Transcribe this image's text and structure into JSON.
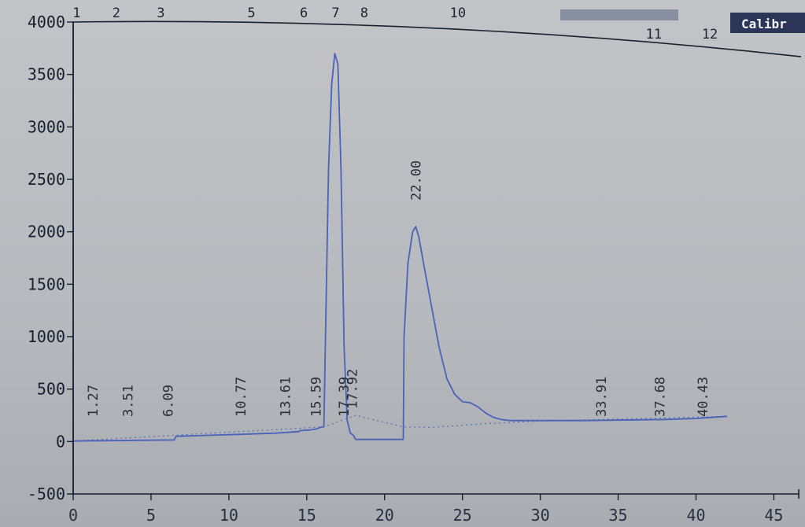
{
  "header": {
    "top_right_label": "Calibr"
  },
  "colors": {
    "signal": "#4a63b8",
    "baseline": "#4a63b8",
    "axis": "#1a1f2e"
  },
  "chart_data": {
    "type": "line",
    "xlim": [
      0,
      47
    ],
    "ylim": [
      -500,
      4000
    ],
    "x_ticks": [
      0,
      5,
      10,
      15,
      20,
      25,
      30,
      35,
      40,
      45
    ],
    "y_ticks": [
      -500,
      0,
      500,
      1000,
      1500,
      2000,
      2500,
      3000,
      3500,
      4000
    ],
    "peak_numbers": [
      {
        "label": "1",
        "x": 2.3
      },
      {
        "label": "2",
        "x": 4.8
      },
      {
        "label": "3",
        "x": 7.6
      },
      {
        "label": "5",
        "x": 13.3
      },
      {
        "label": "6",
        "x": 16.6
      },
      {
        "label": "7",
        "x": 18.6
      },
      {
        "label": "8",
        "x": 20.4
      },
      {
        "label": "10",
        "x": 26.3
      },
      {
        "label": "11",
        "x": 38.4
      },
      {
        "label": "12",
        "x": 42.0
      }
    ],
    "retention_labels": [
      {
        "label": "1.27",
        "x": 1.27
      },
      {
        "label": "3.51",
        "x": 3.51
      },
      {
        "label": "6.09",
        "x": 6.09
      },
      {
        "label": "10.77",
        "x": 10.77
      },
      {
        "label": "13.61",
        "x": 13.61
      },
      {
        "label": "15.59",
        "x": 15.59
      },
      {
        "label": "17.39",
        "x": 17.39
      },
      {
        "label": "17.92",
        "x": 17.92
      },
      {
        "label": "22.00",
        "x": 22.0
      },
      {
        "label": "33.91",
        "x": 33.91
      },
      {
        "label": "37.68",
        "x": 37.68
      },
      {
        "label": "40.43",
        "x": 40.43
      }
    ],
    "series": [
      {
        "x": [
          0,
          6.5,
          6.6,
          10,
          13,
          14.5,
          14.6,
          15.2,
          15.6,
          16.0,
          16.1,
          16.4,
          16.6,
          16.8,
          17.0,
          17.2,
          17.4,
          17.6,
          17.8,
          18.0,
          18.1,
          18.15,
          21.2,
          21.25,
          21.5,
          21.8,
          22.0,
          22.2,
          22.5,
          23.0,
          23.5,
          24.0,
          24.5,
          25.0,
          25.5,
          26.0,
          26.5,
          27.0,
          27.5,
          28.0,
          29.0,
          30.0,
          33.0,
          38.0,
          40.0,
          42.0
        ],
        "y": [
          5,
          15,
          50,
          65,
          80,
          95,
          105,
          110,
          120,
          140,
          140,
          2600,
          3400,
          3700,
          3600,
          2600,
          900,
          200,
          80,
          60,
          30,
          20,
          20,
          1000,
          1700,
          2000,
          2050,
          1950,
          1700,
          1300,
          900,
          600,
          450,
          380,
          370,
          330,
          270,
          230,
          210,
          200,
          200,
          200,
          200,
          210,
          220,
          240
        ]
      }
    ],
    "baseline": {
      "x": [
        0,
        16.1,
        18.15,
        21.2,
        23.0,
        27.0,
        30.0,
        42.0
      ],
      "y": [
        5,
        140,
        250,
        140,
        135,
        175,
        195,
        240
      ]
    }
  }
}
